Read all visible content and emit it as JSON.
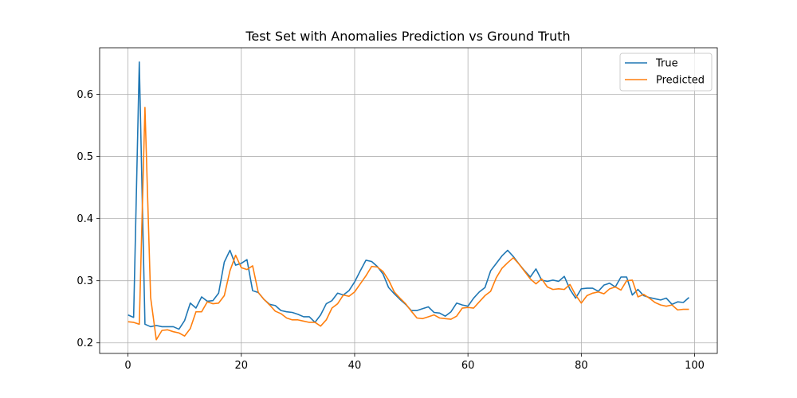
{
  "chart_data": {
    "type": "line",
    "title": "Test Set with Anomalies Prediction vs Ground Truth",
    "xlabel": "",
    "ylabel": "",
    "xlim": [
      -5,
      104
    ],
    "ylim": [
      0.183,
      0.675
    ],
    "xticks": [
      0,
      20,
      40,
      60,
      80,
      100
    ],
    "xtick_labels": [
      "0",
      "20",
      "40",
      "60",
      "80",
      "100"
    ],
    "yticks": [
      0.2,
      0.3,
      0.4,
      0.5,
      0.6
    ],
    "ytick_labels": [
      "0.2",
      "0.3",
      "0.4",
      "0.5",
      "0.6"
    ],
    "grid": true,
    "legend_position": "top-right",
    "series": [
      {
        "name": "True",
        "color": "#1f77b4",
        "x": [
          0,
          1,
          2,
          3,
          4,
          5,
          6,
          7,
          8,
          9,
          10,
          11,
          12,
          13,
          14,
          15,
          16,
          17,
          18,
          19,
          20,
          21,
          22,
          23,
          24,
          25,
          26,
          27,
          28,
          29,
          30,
          31,
          32,
          33,
          34,
          35,
          36,
          37,
          38,
          39,
          40,
          41,
          42,
          43,
          44,
          45,
          46,
          47,
          48,
          49,
          50,
          51,
          52,
          53,
          54,
          55,
          56,
          57,
          58,
          59,
          60,
          61,
          62,
          63,
          64,
          65,
          66,
          67,
          68,
          69,
          70,
          71,
          72,
          73,
          74,
          75,
          76,
          77,
          78,
          79,
          80,
          81,
          82,
          83,
          84,
          85,
          86,
          87,
          88,
          89,
          90,
          91,
          92,
          93,
          94,
          95,
          96,
          97,
          98,
          99
        ],
        "values": [
          0.245,
          0.241,
          0.652,
          0.23,
          0.226,
          0.228,
          0.226,
          0.226,
          0.226,
          0.222,
          0.236,
          0.264,
          0.256,
          0.274,
          0.267,
          0.268,
          0.28,
          0.33,
          0.349,
          0.325,
          0.328,
          0.334,
          0.284,
          0.281,
          0.27,
          0.262,
          0.26,
          0.252,
          0.25,
          0.249,
          0.246,
          0.242,
          0.242,
          0.233,
          0.245,
          0.263,
          0.268,
          0.28,
          0.277,
          0.284,
          0.298,
          0.316,
          0.333,
          0.331,
          0.323,
          0.311,
          0.289,
          0.279,
          0.27,
          0.262,
          0.252,
          0.252,
          0.255,
          0.258,
          0.249,
          0.248,
          0.243,
          0.25,
          0.264,
          0.261,
          0.259,
          0.272,
          0.282,
          0.289,
          0.316,
          0.328,
          0.34,
          0.349,
          0.339,
          0.327,
          0.316,
          0.306,
          0.319,
          0.301,
          0.299,
          0.301,
          0.299,
          0.307,
          0.286,
          0.272,
          0.287,
          0.288,
          0.288,
          0.283,
          0.293,
          0.296,
          0.29,
          0.306,
          0.306,
          0.277,
          0.286,
          0.276,
          0.273,
          0.271,
          0.269,
          0.272,
          0.262,
          0.266,
          0.265,
          0.273
        ]
      },
      {
        "name": "Predicted",
        "color": "#ff7f0e",
        "x": [
          0,
          1,
          2,
          3,
          4,
          5,
          6,
          7,
          8,
          9,
          10,
          11,
          12,
          13,
          14,
          15,
          16,
          17,
          18,
          19,
          20,
          21,
          22,
          23,
          24,
          25,
          26,
          27,
          28,
          29,
          30,
          31,
          32,
          33,
          34,
          35,
          36,
          37,
          38,
          39,
          40,
          41,
          42,
          43,
          44,
          45,
          46,
          47,
          48,
          49,
          50,
          51,
          52,
          53,
          54,
          55,
          56,
          57,
          58,
          59,
          60,
          61,
          62,
          63,
          64,
          65,
          66,
          67,
          68,
          69,
          70,
          71,
          72,
          73,
          74,
          75,
          76,
          77,
          78,
          79,
          80,
          81,
          82,
          83,
          84,
          85,
          86,
          87,
          88,
          89,
          90,
          91,
          92,
          93,
          94,
          95,
          96,
          97,
          98,
          99
        ],
        "values": [
          0.234,
          0.233,
          0.23,
          0.579,
          0.273,
          0.205,
          0.22,
          0.221,
          0.218,
          0.216,
          0.211,
          0.223,
          0.25,
          0.25,
          0.266,
          0.263,
          0.264,
          0.276,
          0.316,
          0.341,
          0.321,
          0.318,
          0.324,
          0.281,
          0.27,
          0.261,
          0.251,
          0.247,
          0.24,
          0.237,
          0.237,
          0.235,
          0.233,
          0.233,
          0.227,
          0.237,
          0.256,
          0.263,
          0.277,
          0.275,
          0.282,
          0.295,
          0.308,
          0.323,
          0.322,
          0.315,
          0.301,
          0.282,
          0.272,
          0.263,
          0.251,
          0.24,
          0.239,
          0.242,
          0.245,
          0.24,
          0.239,
          0.238,
          0.243,
          0.256,
          0.257,
          0.256,
          0.266,
          0.276,
          0.283,
          0.305,
          0.32,
          0.329,
          0.337,
          0.327,
          0.315,
          0.303,
          0.295,
          0.303,
          0.29,
          0.286,
          0.287,
          0.286,
          0.294,
          0.277,
          0.264,
          0.276,
          0.28,
          0.282,
          0.279,
          0.287,
          0.29,
          0.285,
          0.3,
          0.301,
          0.274,
          0.278,
          0.272,
          0.265,
          0.261,
          0.259,
          0.261,
          0.253,
          0.254,
          0.254
        ]
      }
    ]
  }
}
